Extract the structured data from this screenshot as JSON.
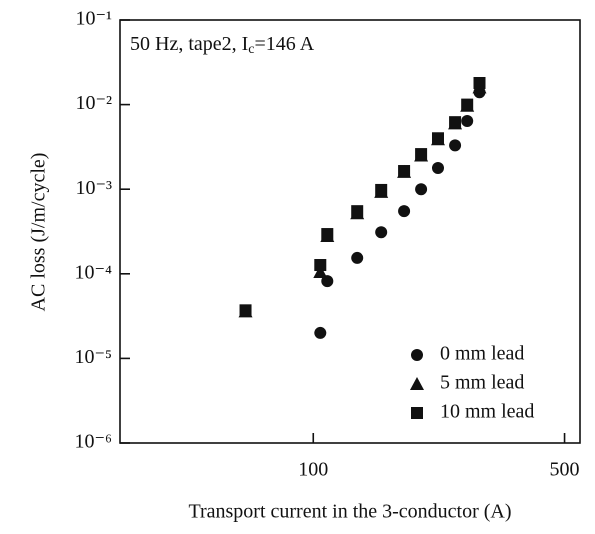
{
  "chart_data": {
    "type": "scatter",
    "log_x": true,
    "log_y": true,
    "annotation": [
      "50 Hz, tape2, I",
      "c",
      "=146 A"
    ],
    "xlabel": "Transport current in the 3-conductor (A)",
    "ylabel": "AC loss (J/m/cycle)",
    "xlim": [
      29,
      552
    ],
    "ylim": [
      1e-06,
      0.1
    ],
    "xticks": [
      100,
      500
    ],
    "yticks": [
      {
        "value": 0.1,
        "label": "10⁻¹"
      },
      {
        "value": 0.01,
        "label": "10⁻²"
      },
      {
        "value": 0.001,
        "label": "10⁻³"
      },
      {
        "value": 0.0001,
        "label": "10⁻⁴"
      },
      {
        "value": 1e-05,
        "label": "10⁻⁵"
      },
      {
        "value": 1e-06,
        "label": "10⁻⁶"
      }
    ],
    "legend": "lower right",
    "series": [
      {
        "name": "0 mm lead",
        "marker": "circle",
        "color": "#111",
        "x": [
          104.6,
          109.4,
          132.5,
          154.5,
          178.9,
          199.5,
          222.3,
          248,
          268,
          290
        ],
        "values": [
          2e-05,
          8.2e-05,
          0.000154,
          0.00031,
          0.00055,
          0.001,
          0.00178,
          0.0033,
          0.0064,
          0.014
        ]
      },
      {
        "name": "5 mm lead",
        "marker": "triangle",
        "color": "#111",
        "x": [
          64.8,
          104.6,
          109.4,
          132.5,
          154.5,
          178.9,
          199.5,
          222.3,
          248,
          268,
          290
        ],
        "values": [
          3.6e-05,
          0.000105,
          0.00028,
          0.00052,
          0.00093,
          0.0016,
          0.0025,
          0.0039,
          0.006,
          0.0097,
          0.016
        ]
      },
      {
        "name": "10 mm lead",
        "marker": "square",
        "color": "#111",
        "x": [
          64.8,
          104.6,
          109.4,
          132.5,
          154.5,
          178.9,
          199.5,
          222.3,
          248,
          268,
          290
        ],
        "values": [
          3.7e-05,
          0.000127,
          0.000295,
          0.00055,
          0.00098,
          0.00164,
          0.0026,
          0.004,
          0.0062,
          0.01,
          0.018
        ]
      }
    ]
  }
}
